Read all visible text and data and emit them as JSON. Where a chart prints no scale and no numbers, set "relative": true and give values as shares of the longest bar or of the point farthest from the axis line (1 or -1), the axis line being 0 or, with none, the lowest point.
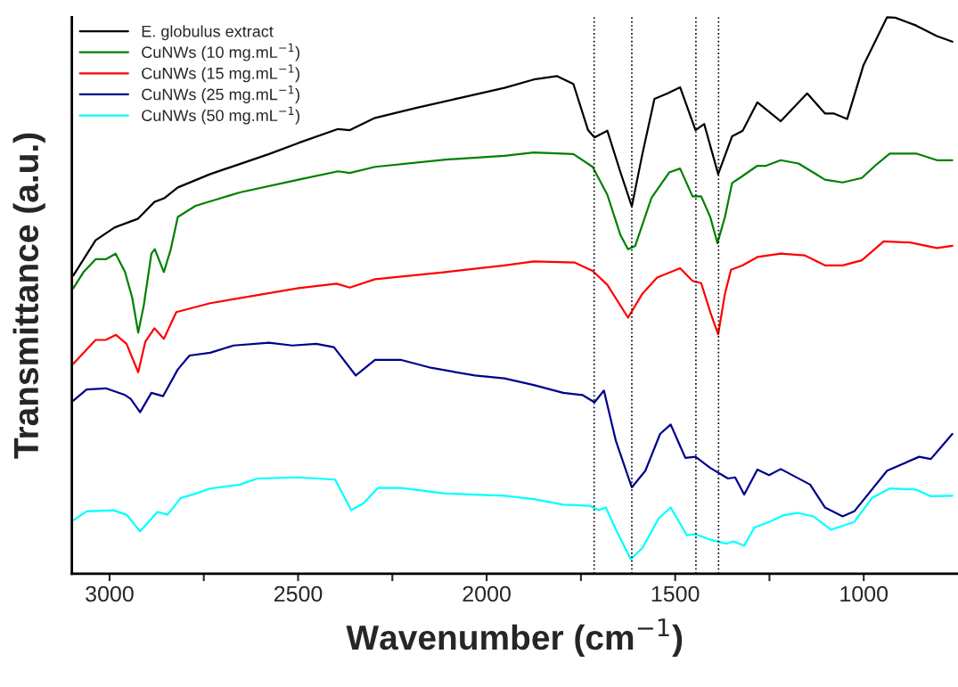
{
  "chart_data": {
    "type": "line",
    "relative": true,
    "xlabel": "Wavenumber (cm$^{−1}$)",
    "ylabel": "Transmittance (a.u.)",
    "xlim": [
      3100,
      750
    ],
    "xticks": [
      3000,
      {
        "value": 2750,
        "label": null
      },
      2500,
      {
        "value": 2250,
        "label": null
      },
      2000,
      {
        "value": 1750,
        "label": null
      },
      1500,
      {
        "value": 1250,
        "label": null
      },
      1000
    ],
    "legend": "top left",
    "grid": false,
    "line_style": "solid",
    "marker": "none",
    "ref_lines": [
      {
        "axis": "x",
        "value": 1715,
        "color": "#000000",
        "line_style": "dotted"
      },
      {
        "axis": "x",
        "value": 1615,
        "color": "#000000",
        "line_style": "dotted"
      },
      {
        "axis": "x",
        "value": 1445,
        "color": "#000000",
        "line_style": "dotted"
      },
      {
        "axis": "x",
        "value": 1385,
        "color": "#000000",
        "line_style": "dotted"
      }
    ],
    "series": [
      {
        "name": "E. globulus extract",
        "color": "#000000",
        "x": [
          3096,
          3037,
          2987,
          2924,
          2881,
          2854,
          2819,
          2733,
          2577,
          2499,
          2394,
          2363,
          2296,
          2187,
          2070,
          1953,
          1875,
          1813,
          1770,
          1731,
          1714,
          1680,
          1645,
          1615,
          1587,
          1555,
          1520,
          1487,
          1446,
          1423,
          1386,
          1349,
          1321,
          1282,
          1220,
          1150,
          1103,
          1080,
          1044,
          1001,
          938,
          916,
          861,
          806,
          765
        ],
        "values": [
          0.536,
          0.599,
          0.622,
          0.638,
          0.668,
          0.675,
          0.694,
          0.718,
          0.754,
          0.774,
          0.799,
          0.797,
          0.819,
          0.837,
          0.855,
          0.873,
          0.888,
          0.894,
          0.88,
          0.797,
          0.784,
          0.796,
          0.721,
          0.66,
          0.754,
          0.853,
          0.863,
          0.874,
          0.797,
          0.808,
          0.718,
          0.786,
          0.796,
          0.847,
          0.813,
          0.863,
          0.827,
          0.827,
          0.817,
          0.913,
          1,
          0.999,
          0.985,
          0.966,
          0.956
        ]
      },
      {
        "name": "CuNWs (10 mg.mL$^{−1}$)",
        "color": "#008000",
        "x": [
          3096,
          3069,
          3037,
          3010,
          2984,
          2959,
          2940,
          2924,
          2909,
          2889,
          2880,
          2856,
          2838,
          2819,
          2772,
          2655,
          2499,
          2394,
          2363,
          2296,
          2109,
          1953,
          1875,
          1770,
          1719,
          1680,
          1645,
          1625,
          1606,
          1563,
          1516,
          1487,
          1454,
          1431,
          1407,
          1388,
          1368,
          1349,
          1329,
          1282,
          1259,
          1220,
          1173,
          1134,
          1103,
          1056,
          1005,
          970,
          931,
          861,
          806,
          765
        ],
        "values": [
          0.513,
          0.542,
          0.565,
          0.565,
          0.575,
          0.542,
          0.496,
          0.433,
          0.483,
          0.575,
          0.583,
          0.542,
          0.582,
          0.641,
          0.661,
          0.685,
          0.708,
          0.723,
          0.72,
          0.731,
          0.744,
          0.751,
          0.757,
          0.754,
          0.731,
          0.681,
          0.608,
          0.583,
          0.589,
          0.675,
          0.721,
          0.728,
          0.678,
          0.678,
          0.641,
          0.594,
          0.641,
          0.702,
          0.711,
          0.733,
          0.733,
          0.743,
          0.737,
          0.721,
          0.708,
          0.703,
          0.711,
          0.733,
          0.755,
          0.755,
          0.743,
          0.743
        ]
      },
      {
        "name": "CuNWs (15 mg.mL$^{−1}$)",
        "color": "#ff0000",
        "x": [
          3096,
          3037,
          3010,
          2983,
          2955,
          2924,
          2905,
          2881,
          2856,
          2823,
          2733,
          2499,
          2398,
          2363,
          2296,
          2109,
          1953,
          1875,
          1766,
          1719,
          1680,
          1625,
          1587,
          1548,
          1487,
          1454,
          1431,
          1407,
          1386,
          1368,
          1352,
          1321,
          1282,
          1220,
          1157,
          1103,
          1056,
          1005,
          947,
          877,
          806,
          765
        ],
        "values": [
          0.377,
          0.42,
          0.42,
          0.429,
          0.413,
          0.362,
          0.417,
          0.441,
          0.422,
          0.47,
          0.486,
          0.513,
          0.521,
          0.514,
          0.529,
          0.542,
          0.554,
          0.561,
          0.559,
          0.544,
          0.519,
          0.46,
          0.503,
          0.532,
          0.549,
          0.526,
          0.522,
          0.47,
          0.43,
          0.503,
          0.546,
          0.554,
          0.569,
          0.575,
          0.572,
          0.554,
          0.554,
          0.563,
          0.597,
          0.595,
          0.585,
          0.589
        ]
      },
      {
        "name": "CuNWs (25 mg.mL$^{−1}$)",
        "color": "#00008b",
        "x": [
          3096,
          3061,
          3010,
          2959,
          2944,
          2919,
          2889,
          2858,
          2819,
          2788,
          2733,
          2671,
          2577,
          2515,
          2452,
          2405,
          2347,
          2296,
          2226,
          2148,
          2031,
          1953,
          1875,
          1797,
          1746,
          1714,
          1689,
          1657,
          1615,
          1579,
          1540,
          1512,
          1473,
          1446,
          1407,
          1360,
          1341,
          1317,
          1282,
          1251,
          1220,
          1142,
          1103,
          1056,
          1025,
          938,
          853,
          822,
          765
        ],
        "values": [
          0.311,
          0.331,
          0.333,
          0.321,
          0.314,
          0.29,
          0.325,
          0.319,
          0.367,
          0.392,
          0.397,
          0.41,
          0.415,
          0.41,
          0.413,
          0.407,
          0.356,
          0.384,
          0.384,
          0.37,
          0.356,
          0.351,
          0.339,
          0.325,
          0.321,
          0.308,
          0.329,
          0.238,
          0.155,
          0.185,
          0.251,
          0.268,
          0.208,
          0.21,
          0.19,
          0.171,
          0.173,
          0.142,
          0.187,
          0.177,
          0.188,
          0.16,
          0.119,
          0.103,
          0.112,
          0.185,
          0.21,
          0.206,
          0.251
        ]
      },
      {
        "name": "CuNWs (50 mg.mL$^{−1}$)",
        "color": "#00ffff",
        "x": [
          3096,
          3061,
          2990,
          2955,
          2919,
          2873,
          2846,
          2811,
          2780,
          2733,
          2655,
          2608,
          2499,
          2402,
          2359,
          2327,
          2288,
          2226,
          2109,
          1953,
          1875,
          1797,
          1727,
          1703,
          1684,
          1657,
          1618,
          1587,
          1544,
          1512,
          1469,
          1446,
          1407,
          1364,
          1345,
          1317,
          1290,
          1251,
          1212,
          1173,
          1134,
          1087,
          1025,
          978,
          931,
          861,
          822,
          765
        ],
        "values": [
          0.096,
          0.112,
          0.114,
          0.106,
          0.076,
          0.111,
          0.106,
          0.136,
          0.142,
          0.153,
          0.16,
          0.171,
          0.173,
          0.169,
          0.114,
          0.126,
          0.154,
          0.154,
          0.144,
          0.14,
          0.134,
          0.124,
          0.122,
          0.114,
          0.119,
          0.079,
          0.026,
          0.046,
          0.099,
          0.119,
          0.069,
          0.071,
          0.061,
          0.054,
          0.058,
          0.05,
          0.083,
          0.093,
          0.105,
          0.109,
          0.103,
          0.079,
          0.093,
          0.136,
          0.153,
          0.151,
          0.139,
          0.14
        ]
      }
    ]
  }
}
